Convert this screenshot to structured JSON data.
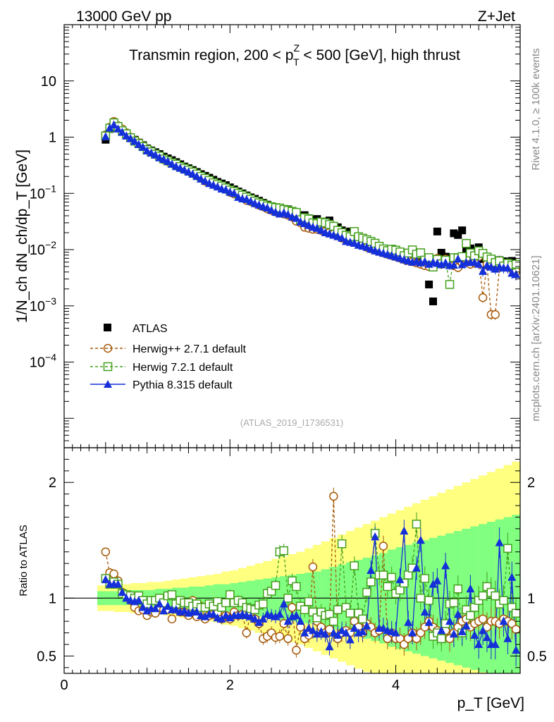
{
  "header": {
    "left": "13000 GeV pp",
    "right": "Z+Jet"
  },
  "side": {
    "rivet": "Rivet 4.1.0, ≥ 100k events",
    "mcplots": "mcplots.cern.ch [arXiv:2401.10621]"
  },
  "analysis_id": "(ATLAS_2019_I1736531)",
  "chart_data": [
    {
      "type": "scatter",
      "panel": "main",
      "title_parts": [
        "Transmin region, 200 < p",
        "Z",
        "T",
        " < 500 [GeV], high thrust"
      ],
      "ylabel": "1/N_ch dN_ch/dp_T [GeV]",
      "yscale": "log",
      "xlim": [
        0,
        5.5
      ],
      "ylim": [
        3e-06,
        100
      ],
      "y_tick_labels": [
        "10",
        "1",
        "10^-1",
        "10^-2",
        "10^-3",
        "10^-4"
      ],
      "legend": [
        "ATLAS",
        "Herwig++ 2.7.1 default",
        "Herwig 7.2.1 default",
        "Pythia 8.315 default"
      ],
      "x": [
        0.5,
        0.55,
        0.6,
        0.65,
        0.7,
        0.75,
        0.8,
        0.85,
        0.9,
        0.95,
        1.0,
        1.05,
        1.1,
        1.15,
        1.2,
        1.25,
        1.3,
        1.35,
        1.4,
        1.45,
        1.5,
        1.55,
        1.6,
        1.65,
        1.7,
        1.75,
        1.8,
        1.85,
        1.9,
        1.95,
        2.0,
        2.05,
        2.1,
        2.15,
        2.2,
        2.25,
        2.3,
        2.35,
        2.4,
        2.45,
        2.5,
        2.55,
        2.6,
        2.65,
        2.7,
        2.75,
        2.8,
        2.85,
        2.9,
        2.95,
        3.0,
        3.05,
        3.1,
        3.15,
        3.2,
        3.25,
        3.3,
        3.35,
        3.4,
        3.45,
        3.5,
        3.55,
        3.6,
        3.65,
        3.7,
        3.75,
        3.8,
        3.85,
        3.9,
        3.95,
        4.0,
        4.05,
        4.1,
        4.15,
        4.2,
        4.25,
        4.3,
        4.35,
        4.4,
        4.45,
        4.5,
        4.55,
        4.6,
        4.65,
        4.7,
        4.75,
        4.8,
        4.85,
        4.9,
        4.95,
        5.0,
        5.05,
        5.1,
        5.15,
        5.2,
        5.25,
        5.3,
        5.35,
        5.4,
        5.45
      ],
      "series": [
        {
          "name": "ATLAS",
          "values": [
            0.9,
            1.4,
            1.65,
            1.5,
            1.25,
            1.1,
            1.0,
            0.9,
            0.8,
            0.72,
            0.63,
            0.58,
            0.54,
            0.5,
            0.45,
            0.42,
            0.39,
            0.36,
            0.33,
            0.3,
            0.28,
            0.26,
            0.24,
            0.22,
            0.205,
            0.19,
            0.175,
            0.16,
            0.15,
            0.14,
            0.128,
            0.118,
            0.108,
            0.1,
            0.092,
            0.085,
            0.08,
            0.074,
            0.068,
            0.063,
            0.058,
            0.054,
            0.05,
            0.047,
            0.052,
            0.045,
            0.042,
            0.039,
            0.041,
            0.036,
            0.034,
            0.035,
            0.031,
            0.029,
            0.033,
            0.026,
            0.025,
            0.022,
            0.02,
            0.021,
            0.019,
            0.017,
            0.016,
            0.015,
            0.014,
            0.012,
            0.011,
            0.0095,
            0.0088,
            0.0082,
            0.0078,
            0.0074,
            0.0067,
            0.0063,
            0.0061,
            0.0065,
            0.0058,
            0.0062,
            0.0024,
            0.0012,
            0.021,
            0.0088,
            0.0075,
            0.0071,
            0.0195,
            0.0182,
            0.022,
            0.0095,
            0.0105,
            0.0082,
            0.011,
            0.0068,
            0.0055,
            0.0053,
            0.0057,
            0.0065,
            0.0062,
            0.0059,
            0.0063,
            0.0056
          ]
        },
        {
          "name": "Herwig++ 2.7.1 default",
          "values": [
            1.1,
            1.5,
            1.9,
            1.6,
            1.4,
            1.2,
            1.0,
            0.88,
            0.8,
            0.7,
            0.6,
            0.55,
            0.5,
            0.45,
            0.4,
            0.37,
            0.35,
            0.32,
            0.29,
            0.27,
            0.25,
            0.23,
            0.21,
            0.19,
            0.165,
            0.16,
            0.15,
            0.14,
            0.13,
            0.12,
            0.105,
            0.098,
            0.092,
            0.085,
            0.075,
            0.072,
            0.067,
            0.062,
            0.058,
            0.053,
            0.05,
            0.047,
            0.045,
            0.043,
            0.041,
            0.038,
            0.032,
            0.03,
            0.025,
            0.024,
            0.023,
            0.023,
            0.022,
            0.021,
            0.02,
            0.019,
            0.018,
            0.016,
            0.015,
            0.014,
            0.014,
            0.013,
            0.012,
            0.011,
            0.0104,
            0.0098,
            0.0093,
            0.0088,
            0.0083,
            0.0079,
            0.0075,
            0.0071,
            0.0067,
            0.0064,
            0.0061,
            0.0058,
            0.0055,
            0.0052,
            0.005,
            0.0061,
            0.007,
            0.0055,
            0.0068,
            0.0062,
            0.0052,
            0.0048,
            0.0058,
            0.0068,
            0.0055,
            0.0058,
            0.0075,
            0.0014,
            0.0055,
            0.0007,
            0.0007,
            0.0048,
            0.0052,
            0.0057,
            0.0045,
            0.0041
          ]
        },
        {
          "name": "Herwig 7.2.1 default",
          "values": [
            1.05,
            1.45,
            1.8,
            1.55,
            1.3,
            1.15,
            0.98,
            0.85,
            0.77,
            0.68,
            0.6,
            0.55,
            0.5,
            0.46,
            0.41,
            0.38,
            0.35,
            0.33,
            0.3,
            0.28,
            0.26,
            0.24,
            0.22,
            0.2,
            0.185,
            0.17,
            0.155,
            0.145,
            0.135,
            0.125,
            0.115,
            0.108,
            0.1,
            0.093,
            0.086,
            0.079,
            0.073,
            0.068,
            0.064,
            0.06,
            0.058,
            0.056,
            0.055,
            0.052,
            0.05,
            0.048,
            0.046,
            0.034,
            0.037,
            0.035,
            0.03,
            0.029,
            0.031,
            0.03,
            0.028,
            0.026,
            0.022,
            0.02,
            0.018,
            0.017,
            0.021,
            0.017,
            0.016,
            0.015,
            0.014,
            0.013,
            0.0115,
            0.0103,
            0.0096,
            0.0102,
            0.0098,
            0.0091,
            0.0078,
            0.0087,
            0.0099,
            0.0083,
            0.0088,
            0.0065,
            0.0072,
            0.0049,
            0.0067,
            0.0056,
            0.0065,
            0.0024,
            0.0072,
            0.0071,
            0.0075,
            0.0129,
            0.0087,
            0.0078,
            0.0095,
            0.0086,
            0.0074,
            0.0068,
            0.0059,
            0.0063,
            0.0051,
            0.0057,
            0.0053,
            0.0055
          ]
        },
        {
          "name": "Pythia 8.315 default",
          "values": [
            1.02,
            1.45,
            1.65,
            1.4,
            1.22,
            1.05,
            0.94,
            0.84,
            0.74,
            0.66,
            0.57,
            0.52,
            0.48,
            0.43,
            0.4,
            0.37,
            0.33,
            0.3,
            0.28,
            0.26,
            0.24,
            0.22,
            0.2,
            0.18,
            0.165,
            0.15,
            0.14,
            0.13,
            0.12,
            0.115,
            0.105,
            0.1,
            0.085,
            0.08,
            0.078,
            0.072,
            0.066,
            0.062,
            0.058,
            0.055,
            0.05,
            0.046,
            0.043,
            0.045,
            0.042,
            0.038,
            0.036,
            0.031,
            0.029,
            0.027,
            0.025,
            0.024,
            0.022,
            0.02,
            0.019,
            0.018,
            0.017,
            0.016,
            0.014,
            0.0135,
            0.013,
            0.012,
            0.0115,
            0.011,
            0.0102,
            0.0095,
            0.009,
            0.0086,
            0.0082,
            0.0078,
            0.0074,
            0.007,
            0.0066,
            0.0063,
            0.006,
            0.0062,
            0.0058,
            0.0061,
            0.0055,
            0.0059,
            0.0057,
            0.0054,
            0.0058,
            0.0052,
            0.0053,
            0.0068,
            0.0054,
            0.0059,
            0.0059,
            0.0059,
            0.0055,
            0.0041,
            0.0052,
            0.0049,
            0.0045,
            0.0049,
            0.0047,
            0.0047,
            0.0038,
            0.0036
          ]
        }
      ]
    },
    {
      "type": "scatter",
      "panel": "ratio",
      "ylabel": "Ratio to ATLAS",
      "xlabel": "p_T [GeV]",
      "xlim": [
        0,
        5.5
      ],
      "ylim": [
        0.35,
        2.3
      ],
      "reference": 1,
      "y_tick_labels": [
        "0.5",
        "1",
        "2"
      ],
      "x_tick_labels": [
        "0",
        "2",
        "4"
      ],
      "band_x": [
        0.45,
        0.55,
        0.65,
        0.75,
        0.85,
        0.95,
        1.05,
        1.15,
        1.25,
        1.35,
        1.45,
        1.55,
        1.65,
        1.75,
        1.85,
        1.95,
        2.05,
        2.15,
        2.25,
        2.35,
        2.45,
        2.55,
        2.65,
        2.75,
        2.85,
        2.95,
        3.05,
        3.15,
        3.25,
        3.35,
        3.45,
        3.55,
        3.65,
        3.75,
        3.85,
        3.95,
        4.05,
        4.15,
        4.25,
        4.35,
        4.45,
        4.55,
        4.65,
        4.75,
        4.85,
        4.95,
        5.05,
        5.15,
        5.25,
        5.35,
        5.45
      ],
      "band_stat": [
        0.06,
        0.06,
        0.06,
        0.06,
        0.07,
        0.07,
        0.07,
        0.08,
        0.08,
        0.09,
        0.09,
        0.1,
        0.1,
        0.11,
        0.12,
        0.12,
        0.13,
        0.14,
        0.15,
        0.16,
        0.17,
        0.18,
        0.19,
        0.2,
        0.21,
        0.22,
        0.23,
        0.25,
        0.27,
        0.29,
        0.31,
        0.33,
        0.35,
        0.37,
        0.39,
        0.42,
        0.44,
        0.46,
        0.48,
        0.5,
        0.52,
        0.54,
        0.56,
        0.58,
        0.6,
        0.62,
        0.64,
        0.66,
        0.68,
        0.7,
        0.72
      ],
      "band_total": [
        0.11,
        0.11,
        0.12,
        0.12,
        0.13,
        0.13,
        0.14,
        0.14,
        0.15,
        0.16,
        0.17,
        0.18,
        0.19,
        0.2,
        0.21,
        0.23,
        0.24,
        0.26,
        0.28,
        0.3,
        0.32,
        0.34,
        0.36,
        0.38,
        0.4,
        0.43,
        0.46,
        0.49,
        0.52,
        0.55,
        0.58,
        0.61,
        0.64,
        0.67,
        0.7,
        0.73,
        0.76,
        0.79,
        0.82,
        0.85,
        0.88,
        0.91,
        0.94,
        0.97,
        1.0,
        1.03,
        1.06,
        1.09,
        1.12,
        1.15,
        1.18
      ],
      "series": [
        {
          "name": "Herwig++ 2.7.1 default",
          "values": [
            1.4,
            1.22,
            1.21,
            1.15,
            1.05,
            1.02,
            0.98,
            0.92,
            0.89,
            0.9,
            0.85,
            0.88,
            0.87,
            0.92,
            0.9,
            0.9,
            0.82,
            0.95,
            0.88,
            0.88,
            0.85,
            0.98,
            0.84,
            0.93,
            0.82,
            0.85,
            0.86,
            0.87,
            0.82,
            0.85,
            0.82,
            0.88,
            0.85,
            0.86,
            0.7,
            0.88,
            0.82,
            0.78,
            0.65,
            0.67,
            0.7,
            0.66,
            0.67,
            0.78,
            0.65,
            0.92,
            0.55,
            0.75,
            0.65,
            0.68,
            1.27,
            0.8,
            0.75,
            0.7,
            0.73,
            1.88,
            0.65,
            0.7,
            0.72,
            0.7,
            0.8,
            0.75,
            0.7,
            0.78,
            0.75,
            0.7,
            0.72,
            1.45,
            0.65,
            0.7,
            0.65,
            0.65,
            0.6,
            0.65,
            0.7,
            0.65,
            0.7,
            0.75,
            0.8,
            0.75,
            0.72,
            0.7,
            0.72,
            0.65,
            0.7,
            0.75,
            0.8,
            0.82,
            0.75,
            0.78,
            0.8,
            0.82,
            0.75,
            0.8,
            0.8,
            0.78,
            0.82,
            0.8,
            0.78,
            0.73
          ]
        },
        {
          "name": "Herwig 7.2.1 default",
          "values": [
            1.17,
            1.12,
            1.14,
            1.12,
            1.04,
            1.03,
            1.02,
            1.0,
            1.02,
            0.98,
            0.95,
            0.98,
            0.98,
            1.0,
            0.96,
            1.02,
            1.03,
            0.95,
            0.98,
            0.96,
            0.96,
            0.93,
            0.95,
            0.92,
            0.92,
            0.95,
            0.93,
            0.97,
            0.92,
            0.96,
            1.03,
            0.96,
            0.98,
            0.96,
            0.92,
            0.91,
            0.9,
            0.94,
            0.95,
            1.04,
            1.06,
            1.11,
            1.4,
            1.41,
            1.0,
            1.15,
            1.1,
            0.93,
            0.9,
            0.97,
            0.88,
            0.83,
            0.88,
            0.85,
            0.86,
            0.8,
            0.9,
            1.47,
            0.92,
            0.87,
            1.28,
            0.87,
            0.82,
            1.05,
            1.14,
            1.56,
            1.2,
            1.2,
            1.1,
            1.18,
            1.04,
            1.07,
            1.13,
            1.2,
            1.26,
            1.64,
            1.0,
            1.17,
            0.98,
            0.67,
            0.7,
            0.65,
            0.78,
            0.95,
            0.96,
            1.08,
            0.7,
            0.9,
            0.85,
            0.92,
            0.98,
            1.02,
            1.1,
            1.05,
            1.02,
            0.95,
            0.98,
            1.43,
            0.92,
            0.87
          ]
        },
        {
          "name": "Pythia 8.315 default",
          "values": [
            1.16,
            1.12,
            1.12,
            1.12,
            1.05,
            1.0,
            0.98,
            0.97,
            0.98,
            0.92,
            0.89,
            0.91,
            0.91,
            0.95,
            0.89,
            0.93,
            0.9,
            0.9,
            0.88,
            0.89,
            0.87,
            0.88,
            0.88,
            0.85,
            0.84,
            0.86,
            0.86,
            0.83,
            0.82,
            0.85,
            0.83,
            0.85,
            0.85,
            0.86,
            0.85,
            0.84,
            0.82,
            0.79,
            0.82,
            0.86,
            0.85,
            0.84,
            0.86,
            0.95,
            0.8,
            0.84,
            0.85,
            0.8,
            0.7,
            0.74,
            0.72,
            0.69,
            0.71,
            0.69,
            0.58,
            0.7,
            0.68,
            0.72,
            0.7,
            0.64,
            0.74,
            0.7,
            0.71,
            0.76,
            1.24,
            1.53,
            0.74,
            0.74,
            0.72,
            0.71,
            0.7,
            1.16,
            1.58,
            0.79,
            0.7,
            1.26,
            1.5,
            0.88,
            0.79,
            1.12,
            1.15,
            0.72,
            1.28,
            0.8,
            0.69,
            0.86,
            0.71,
            0.76,
            1.08,
            0.68,
            0.6,
            0.72,
            0.66,
            0.6,
            0.6,
            1.48,
            0.8,
            0.65,
            1.18,
            0.55
          ]
        }
      ]
    }
  ],
  "colors": {
    "herwigpp": "#a65a0a",
    "herwig7": "#45a01e",
    "pythia": "#1530d8",
    "band_total": "#ffff80",
    "band_stat": "#80ff80",
    "meta_text": "#888888"
  }
}
